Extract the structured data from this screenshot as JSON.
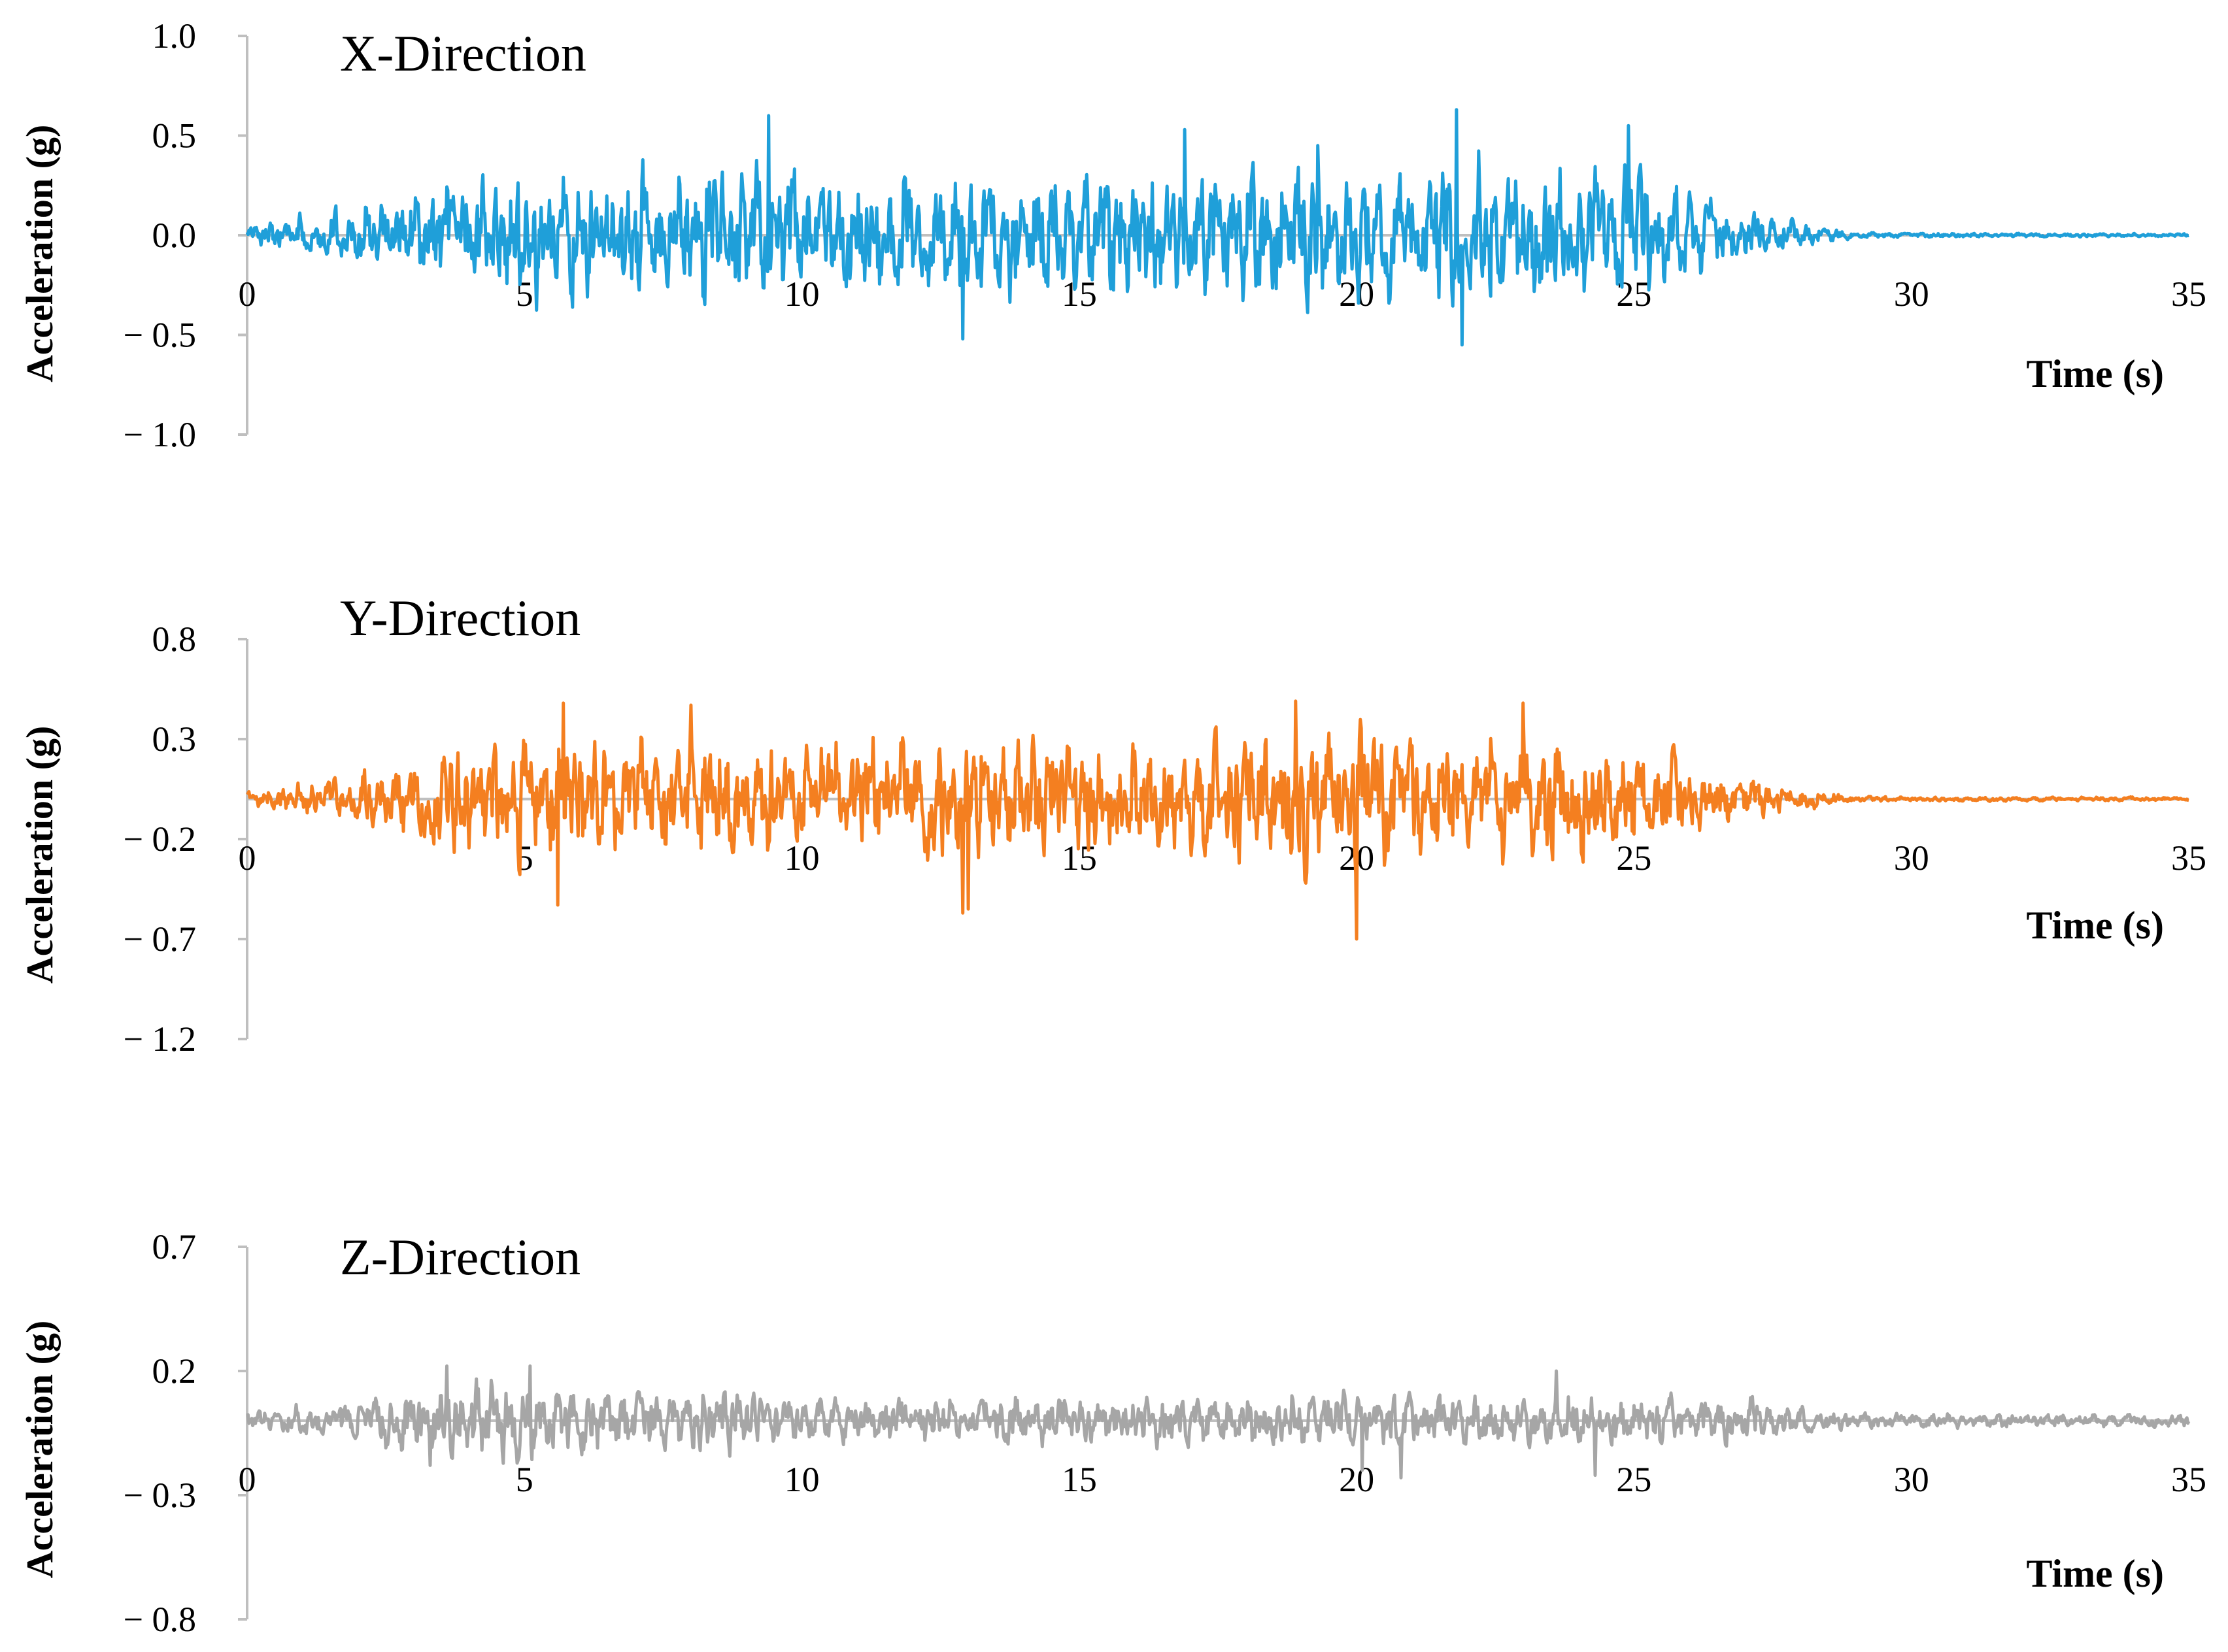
{
  "chart_data": [
    {
      "type": "line",
      "title": "X-Direction",
      "xlabel": "Time (s)",
      "ylabel": "Acceleration (g)",
      "xlim": [
        0,
        35
      ],
      "ylim": [
        -1.0,
        1.0
      ],
      "xticks": [
        "0",
        "5",
        "10",
        "15",
        "20",
        "25",
        "30",
        "35"
      ],
      "yticks": [
        "1.0",
        "0.5",
        "0.0",
        "− 0.5",
        "− 1.0"
      ],
      "ytick_values": [
        1.0,
        0.5,
        0.0,
        -0.5,
        -1.0
      ],
      "series": [
        {
          "color": "#1f9fd9",
          "envelope": [
            [
              0,
              0.06
            ],
            [
              1,
              0.12
            ],
            [
              2,
              0.18
            ],
            [
              3,
              0.26
            ],
            [
              4,
              0.38
            ],
            [
              5,
              0.44
            ],
            [
              6,
              0.42
            ],
            [
              7,
              0.42
            ],
            [
              8,
              0.44
            ],
            [
              9,
              0.5
            ],
            [
              10,
              0.44
            ],
            [
              11,
              0.4
            ],
            [
              12,
              0.38
            ],
            [
              13,
              0.42
            ],
            [
              14,
              0.44
            ],
            [
              15,
              0.42
            ],
            [
              16,
              0.42
            ],
            [
              17,
              0.46
            ],
            [
              18,
              0.42
            ],
            [
              19,
              0.42
            ],
            [
              20,
              0.42
            ],
            [
              21,
              0.44
            ],
            [
              22,
              0.5
            ],
            [
              23,
              0.42
            ],
            [
              24,
              0.4
            ],
            [
              25,
              0.44
            ],
            [
              26,
              0.28
            ],
            [
              27,
              0.16
            ],
            [
              28,
              0.08
            ],
            [
              29,
              0.02
            ],
            [
              30,
              0.015
            ],
            [
              35,
              0.01
            ]
          ],
          "peaks": [
            [
              9.4,
              0.6
            ],
            [
              21.8,
              0.63
            ],
            [
              21.9,
              -0.55
            ],
            [
              12.9,
              -0.52
            ],
            [
              24.9,
              0.55
            ],
            [
              16.9,
              0.53
            ],
            [
              19.3,
              0.45
            ]
          ]
        }
      ]
    },
    {
      "type": "line",
      "title": "Y-Direction",
      "xlabel": "Time (s)",
      "ylabel": "Acceleration (g)",
      "xlim": [
        0,
        35
      ],
      "ylim": [
        -1.2,
        0.8
      ],
      "xticks": [
        "0",
        "5",
        "10",
        "15",
        "20",
        "25",
        "30",
        "35"
      ],
      "yticks": [
        "0.8",
        "0.3",
        "− 0.2",
        "− 0.7",
        "− 1.2"
      ],
      "ytick_values": [
        0.8,
        0.3,
        -0.2,
        -0.7,
        -1.2
      ],
      "series": [
        {
          "color": "#f47f20",
          "envelope": [
            [
              0,
              0.06
            ],
            [
              1,
              0.1
            ],
            [
              2,
              0.18
            ],
            [
              3,
              0.26
            ],
            [
              4,
              0.34
            ],
            [
              5,
              0.42
            ],
            [
              6,
              0.4
            ],
            [
              7,
              0.36
            ],
            [
              8,
              0.4
            ],
            [
              9,
              0.4
            ],
            [
              10,
              0.36
            ],
            [
              11,
              0.36
            ],
            [
              12,
              0.42
            ],
            [
              13,
              0.42
            ],
            [
              14,
              0.4
            ],
            [
              15,
              0.38
            ],
            [
              16,
              0.36
            ],
            [
              17,
              0.38
            ],
            [
              18,
              0.4
            ],
            [
              19,
              0.44
            ],
            [
              20,
              0.46
            ],
            [
              21,
              0.4
            ],
            [
              22,
              0.36
            ],
            [
              23,
              0.42
            ],
            [
              24,
              0.36
            ],
            [
              25,
              0.3
            ],
            [
              26,
              0.24
            ],
            [
              27,
              0.14
            ],
            [
              28,
              0.08
            ],
            [
              29,
              0.02
            ],
            [
              30,
              0.015
            ],
            [
              35,
              0.012
            ]
          ],
          "peaks": [
            [
              20.0,
              -0.7
            ],
            [
              12.9,
              -0.57
            ],
            [
              5.6,
              -0.53
            ],
            [
              5.7,
              0.48
            ],
            [
              18.9,
              0.49
            ],
            [
              23.0,
              0.48
            ],
            [
              8.0,
              0.47
            ],
            [
              13.0,
              -0.55
            ]
          ]
        }
      ]
    },
    {
      "type": "line",
      "title": "Z-Direction",
      "xlabel": "Time (s)",
      "ylabel": "Acceleration (g)",
      "xlim": [
        0,
        35
      ],
      "ylim": [
        -0.8,
        0.7
      ],
      "xticks": [
        "0",
        "5",
        "10",
        "15",
        "20",
        "25",
        "30",
        "35"
      ],
      "yticks": [
        "0.7",
        "0.2",
        "− 0.3",
        "− 0.8"
      ],
      "ytick_values": [
        0.7,
        0.2,
        -0.3,
        -0.8
      ],
      "series": [
        {
          "color": "#a6a6a6",
          "envelope": [
            [
              0,
              0.05
            ],
            [
              1,
              0.08
            ],
            [
              2,
              0.1
            ],
            [
              3,
              0.16
            ],
            [
              4,
              0.2
            ],
            [
              5,
              0.2
            ],
            [
              6,
              0.16
            ],
            [
              7,
              0.16
            ],
            [
              8,
              0.18
            ],
            [
              9,
              0.18
            ],
            [
              10,
              0.1
            ],
            [
              11,
              0.12
            ],
            [
              12,
              0.12
            ],
            [
              13,
              0.1
            ],
            [
              14,
              0.14
            ],
            [
              15,
              0.12
            ],
            [
              16,
              0.12
            ],
            [
              17,
              0.14
            ],
            [
              18,
              0.14
            ],
            [
              19,
              0.14
            ],
            [
              20,
              0.16
            ],
            [
              21,
              0.12
            ],
            [
              22,
              0.12
            ],
            [
              23,
              0.14
            ],
            [
              24,
              0.16
            ],
            [
              25,
              0.12
            ],
            [
              26,
              0.12
            ],
            [
              27,
              0.12
            ],
            [
              28,
              0.08
            ],
            [
              29,
              0.04
            ],
            [
              30,
              0.035
            ],
            [
              35,
              0.03
            ]
          ],
          "peaks": [
            [
              5.1,
              0.22
            ],
            [
              3.6,
              0.22
            ],
            [
              3.3,
              -0.18
            ],
            [
              20.8,
              -0.23
            ],
            [
              24.3,
              -0.22
            ],
            [
              23.6,
              0.2
            ],
            [
              20.1,
              -0.2
            ]
          ]
        }
      ]
    }
  ]
}
